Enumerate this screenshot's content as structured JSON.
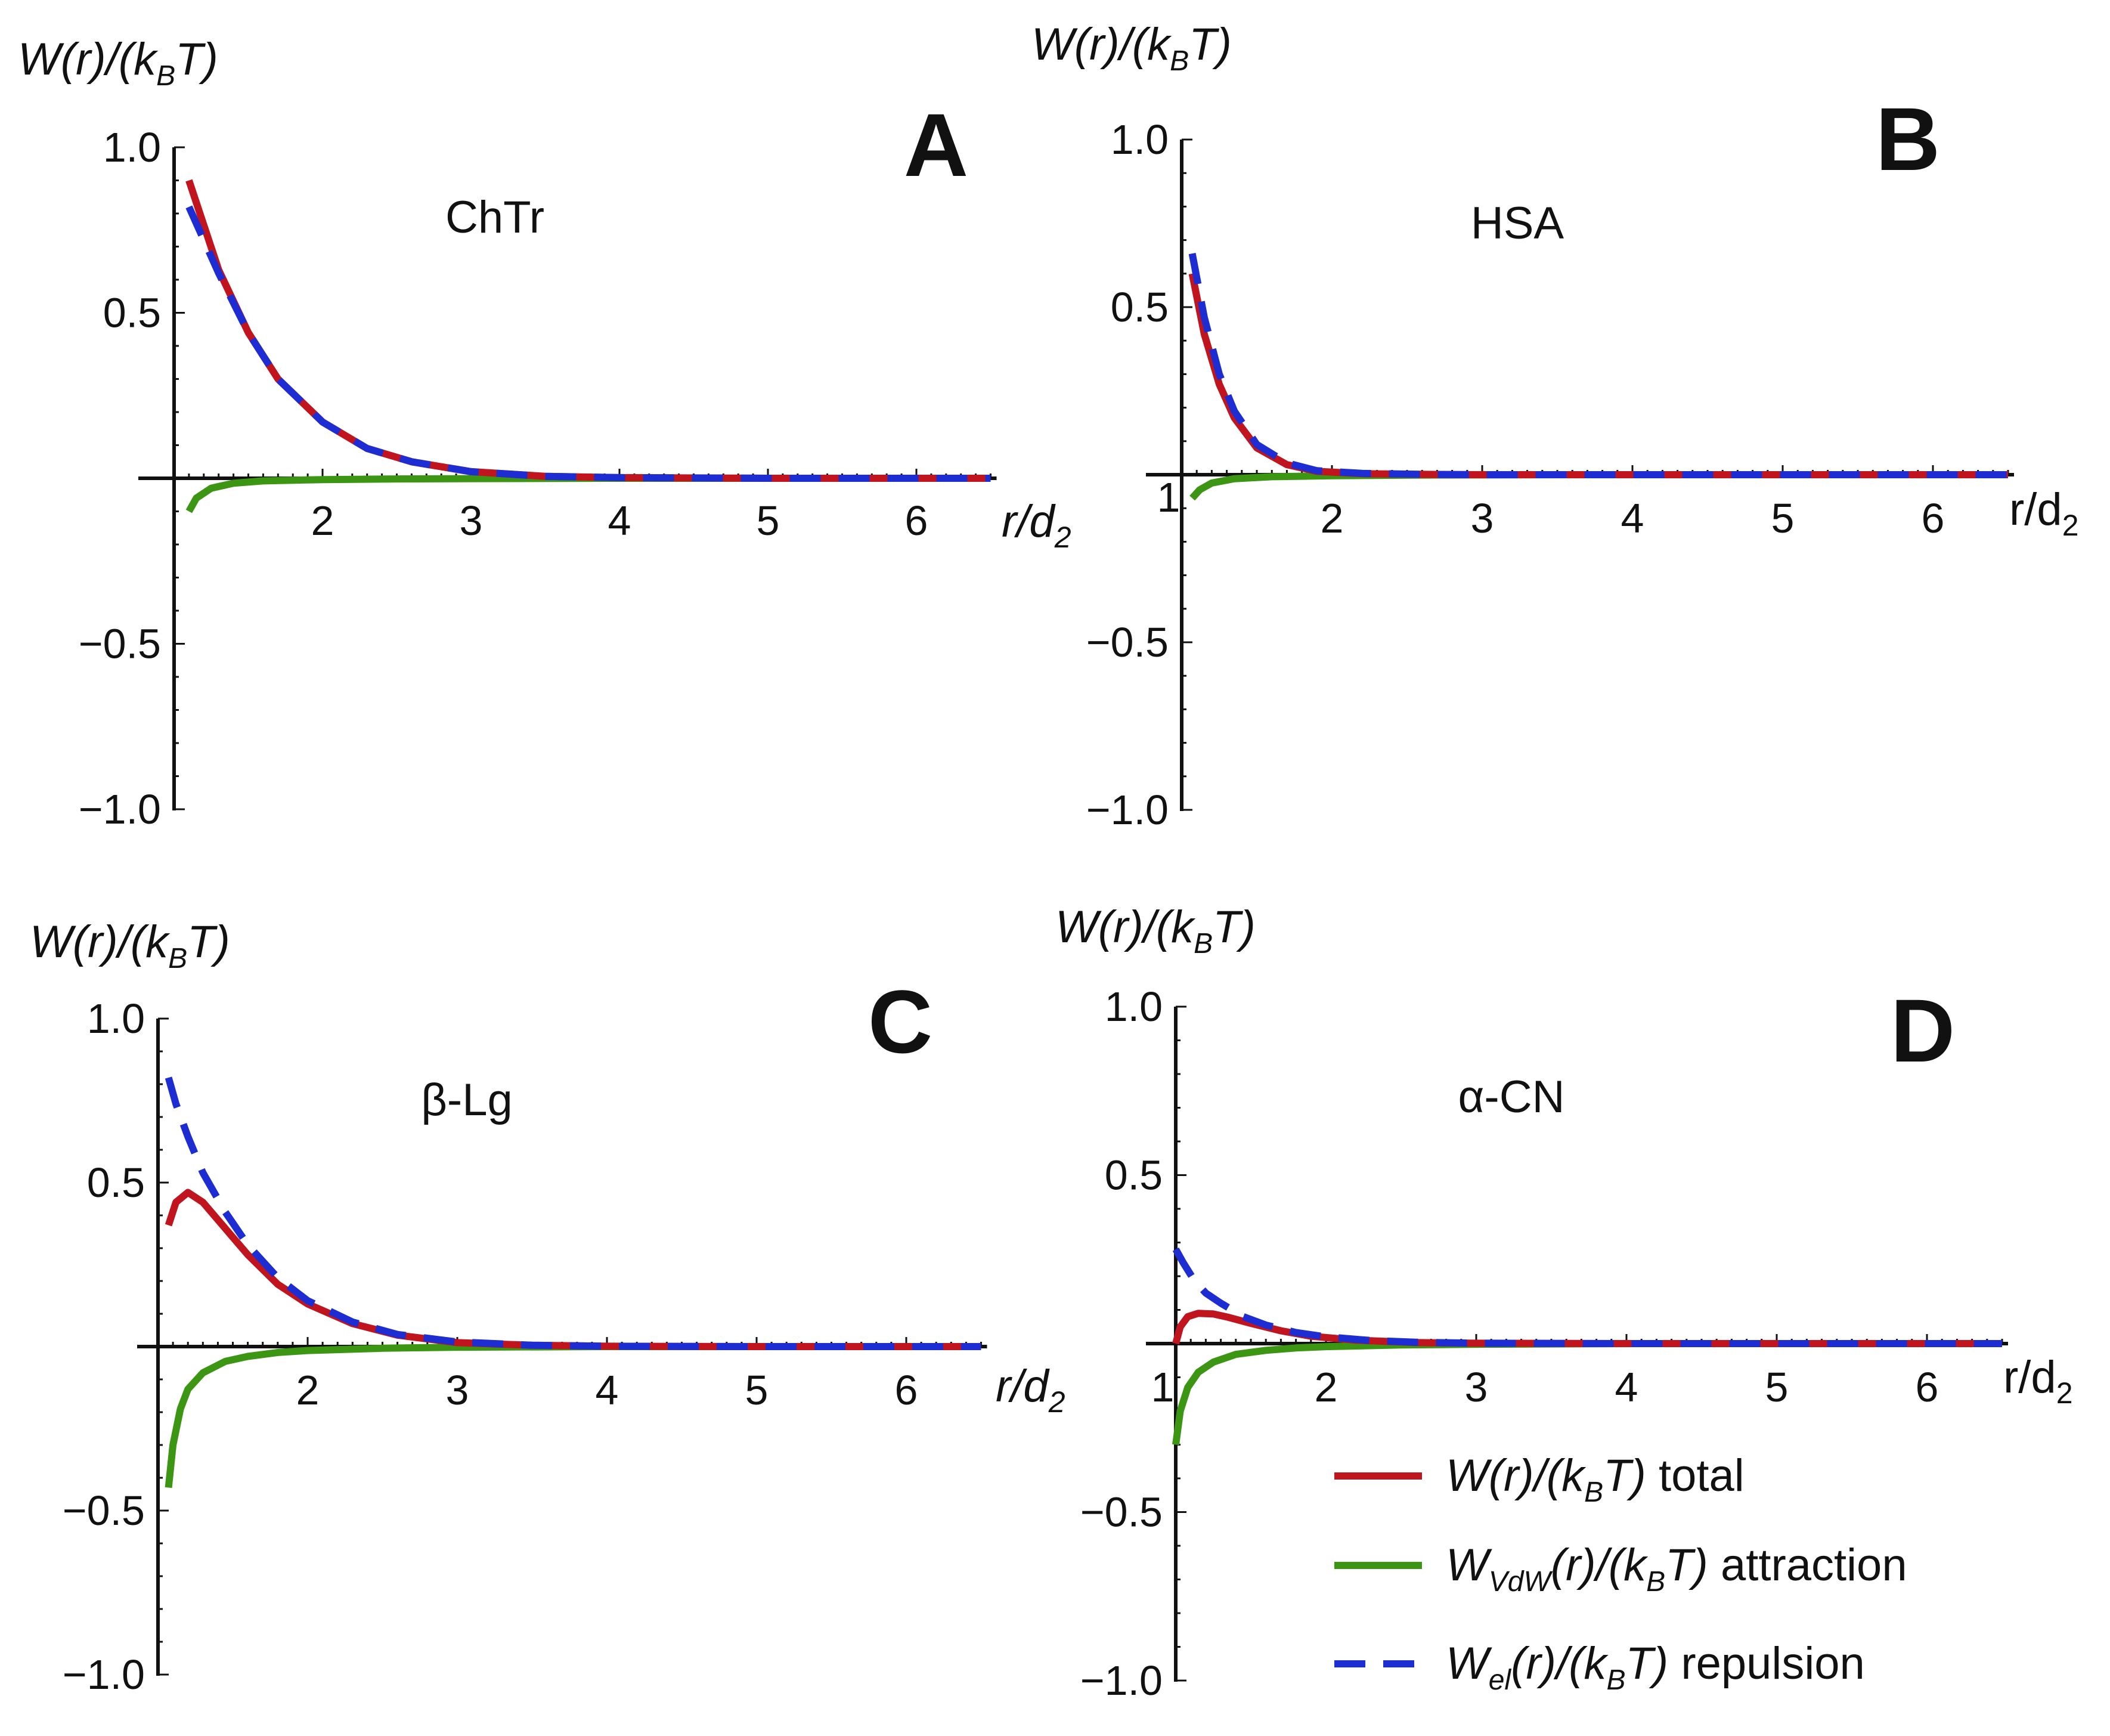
{
  "colors": {
    "total": "#c0141e",
    "attraction": "#3c9614",
    "repulsion": "#1e2dd2",
    "axis": "#111111"
  },
  "legend": {
    "items": [
      {
        "series": "total",
        "pre": "W(r)/(k",
        "sub": "B",
        "post": "T)",
        "suffix": " total"
      },
      {
        "series": "attraction",
        "pre": "W",
        "sub": "VdW",
        "post": "(r)/(k",
        "sub2": "B",
        "post2": "T)",
        "suffix": " attraction"
      },
      {
        "series": "repulsion",
        "pre": "W",
        "sub": "el",
        "post": "(r)/(k",
        "sub2": "B",
        "post2": "T)",
        "suffix": " repulsion"
      }
    ]
  },
  "chart_data": [
    {
      "type": "line",
      "panel": "A",
      "title": "ChTr",
      "ylabel": {
        "pre": "W(r)/(k",
        "sub": "B",
        "post": "T)"
      },
      "xlabel": {
        "pre": "r/d",
        "sub": "2",
        "italic": true
      },
      "xlim": [
        1.0,
        6.5
      ],
      "ylim": [
        -1.0,
        1.0
      ],
      "xticks": [
        "2",
        "3",
        "4",
        "5",
        "6"
      ],
      "yticks": [
        "1.0",
        "0.5",
        "−0.5",
        "−1.0"
      ],
      "extra_xtick": "",
      "series": [
        {
          "name": "total",
          "style": "solid",
          "x": [
            1.1,
            1.3,
            1.5,
            1.7,
            2.0,
            2.3,
            2.6,
            3.0,
            3.5,
            4.0,
            5.0,
            6.0,
            6.5
          ],
          "y": [
            0.9,
            0.63,
            0.44,
            0.3,
            0.17,
            0.09,
            0.05,
            0.02,
            0.006,
            0.002,
            0.0,
            0.0,
            0.0
          ]
        },
        {
          "name": "attraction",
          "style": "solid",
          "x": [
            1.1,
            1.15,
            1.25,
            1.4,
            1.6,
            2.0,
            2.5,
            3.0,
            4.0,
            5.0,
            6.0,
            6.5
          ],
          "y": [
            -0.1,
            -0.06,
            -0.03,
            -0.015,
            -0.008,
            -0.004,
            -0.002,
            -0.001,
            0.0,
            0.0,
            0.0,
            0.0
          ]
        },
        {
          "name": "repulsion",
          "style": "dashed",
          "x": [
            1.1,
            1.3,
            1.5,
            1.7,
            2.0,
            2.3,
            2.6,
            3.0,
            3.5,
            4.0,
            5.0,
            6.0,
            6.5
          ],
          "y": [
            0.82,
            0.62,
            0.44,
            0.3,
            0.17,
            0.09,
            0.05,
            0.02,
            0.006,
            0.002,
            0.0,
            0.0,
            0.0
          ]
        }
      ]
    },
    {
      "type": "line",
      "panel": "B",
      "title": "HSA",
      "ylabel": {
        "pre": "W(r)/(k",
        "sub": "B",
        "post": "T)"
      },
      "xlabel": {
        "pre": "r/d",
        "sub": "2",
        "italic": false
      },
      "xlim": [
        1.0,
        6.5
      ],
      "ylim": [
        -1.0,
        1.0
      ],
      "xticks": [
        "2",
        "3",
        "4",
        "5",
        "6"
      ],
      "yticks": [
        "1.0",
        "0.5",
        "−0.5",
        "−1.0"
      ],
      "extra_xtick": "1",
      "series": [
        {
          "name": "total",
          "style": "solid",
          "x": [
            1.07,
            1.15,
            1.25,
            1.35,
            1.5,
            1.7,
            1.9,
            2.2,
            2.6,
            3.0,
            4.0,
            5.0,
            6.0,
            6.5
          ],
          "y": [
            0.6,
            0.42,
            0.27,
            0.17,
            0.08,
            0.03,
            0.01,
            0.003,
            0.001,
            0.0,
            0.0,
            0.0,
            0.0,
            0.0
          ]
        },
        {
          "name": "attraction",
          "style": "solid",
          "x": [
            1.07,
            1.12,
            1.2,
            1.35,
            1.6,
            2.0,
            2.6,
            3.5,
            4.5,
            5.5,
            6.5
          ],
          "y": [
            -0.07,
            -0.045,
            -0.025,
            -0.012,
            -0.006,
            -0.003,
            -0.001,
            0.0,
            0.0,
            0.0,
            0.0
          ]
        },
        {
          "name": "repulsion",
          "style": "dashed",
          "x": [
            1.07,
            1.15,
            1.25,
            1.35,
            1.5,
            1.7,
            1.9,
            2.2,
            2.6,
            3.0,
            4.0,
            5.0,
            6.0,
            6.5
          ],
          "y": [
            0.66,
            0.47,
            0.3,
            0.19,
            0.09,
            0.035,
            0.012,
            0.004,
            0.001,
            0.0,
            0.0,
            0.0,
            0.0,
            0.0
          ]
        }
      ]
    },
    {
      "type": "line",
      "panel": "C",
      "title": "β-Lg",
      "ylabel": {
        "pre": "W(r)/(k",
        "sub": "B",
        "post": "T)"
      },
      "xlabel": {
        "pre": "r/d",
        "sub": "2",
        "italic": true
      },
      "xlim": [
        1.0,
        6.5
      ],
      "ylim": [
        -1.0,
        1.0
      ],
      "xticks": [
        "2",
        "3",
        "4",
        "5",
        "6"
      ],
      "yticks": [
        "1.0",
        "0.5",
        "−0.5",
        "−1.0"
      ],
      "extra_xtick": "",
      "series": [
        {
          "name": "total",
          "style": "solid",
          "x": [
            1.07,
            1.12,
            1.2,
            1.3,
            1.45,
            1.6,
            1.8,
            2.0,
            2.3,
            2.6,
            3.0,
            3.5,
            4.0,
            5.0,
            6.0,
            6.5
          ],
          "y": [
            0.37,
            0.44,
            0.47,
            0.44,
            0.36,
            0.28,
            0.19,
            0.13,
            0.07,
            0.035,
            0.012,
            0.004,
            0.001,
            0.0,
            0.0,
            0.0
          ]
        },
        {
          "name": "attraction",
          "style": "solid",
          "x": [
            1.07,
            1.1,
            1.15,
            1.2,
            1.3,
            1.45,
            1.6,
            1.8,
            2.0,
            2.5,
            3.0,
            4.0,
            5.0,
            6.0,
            6.5
          ],
          "y": [
            -0.43,
            -0.3,
            -0.19,
            -0.13,
            -0.08,
            -0.045,
            -0.03,
            -0.018,
            -0.012,
            -0.005,
            -0.002,
            0.0,
            0.0,
            0.0,
            0.0
          ]
        },
        {
          "name": "repulsion",
          "style": "dashed",
          "x": [
            1.07,
            1.12,
            1.2,
            1.3,
            1.45,
            1.6,
            1.8,
            2.0,
            2.3,
            2.6,
            3.0,
            3.5,
            4.0,
            5.0,
            6.0,
            6.5
          ],
          "y": [
            0.82,
            0.74,
            0.64,
            0.53,
            0.41,
            0.31,
            0.21,
            0.14,
            0.075,
            0.037,
            0.014,
            0.004,
            0.001,
            0.0,
            0.0,
            0.0
          ]
        }
      ]
    },
    {
      "type": "line",
      "panel": "D",
      "title": "α-CN",
      "ylabel": {
        "pre": "W(r)/(k",
        "sub": "B",
        "post": "T)"
      },
      "xlabel": {
        "pre": "r/d",
        "sub": "2",
        "italic": false
      },
      "xlim": [
        1.0,
        6.5
      ],
      "ylim": [
        -1.0,
        1.0
      ],
      "xticks": [
        "2",
        "3",
        "4",
        "5",
        "6"
      ],
      "yticks": [
        "1.0",
        "0.5",
        "−0.5",
        "−1.0"
      ],
      "extra_xtick": "1",
      "series": [
        {
          "name": "total",
          "style": "solid",
          "x": [
            1.0,
            1.03,
            1.08,
            1.15,
            1.25,
            1.35,
            1.5,
            1.7,
            1.9,
            2.2,
            2.6,
            3.0,
            4.0,
            5.0,
            6.0,
            6.5
          ],
          "y": [
            0.0,
            0.05,
            0.08,
            0.09,
            0.088,
            0.078,
            0.06,
            0.038,
            0.022,
            0.01,
            0.003,
            0.001,
            0.0,
            0.0,
            0.0,
            0.0
          ]
        },
        {
          "name": "attraction",
          "style": "solid",
          "x": [
            1.0,
            1.03,
            1.08,
            1.15,
            1.25,
            1.4,
            1.6,
            1.8,
            2.0,
            2.5,
            3.0,
            4.0,
            5.0,
            6.0,
            6.5
          ],
          "y": [
            -0.3,
            -0.2,
            -0.13,
            -0.085,
            -0.055,
            -0.032,
            -0.02,
            -0.013,
            -0.009,
            -0.004,
            -0.002,
            0.0,
            0.0,
            0.0,
            0.0
          ]
        },
        {
          "name": "repulsion",
          "style": "dashed",
          "x": [
            1.0,
            1.05,
            1.12,
            1.2,
            1.3,
            1.45,
            1.6,
            1.8,
            2.0,
            2.3,
            2.6,
            3.0,
            4.0,
            5.0,
            6.0,
            6.5
          ],
          "y": [
            0.28,
            0.24,
            0.19,
            0.15,
            0.12,
            0.08,
            0.055,
            0.033,
            0.02,
            0.009,
            0.004,
            0.001,
            0.0,
            0.0,
            0.0,
            0.0
          ]
        }
      ]
    }
  ]
}
